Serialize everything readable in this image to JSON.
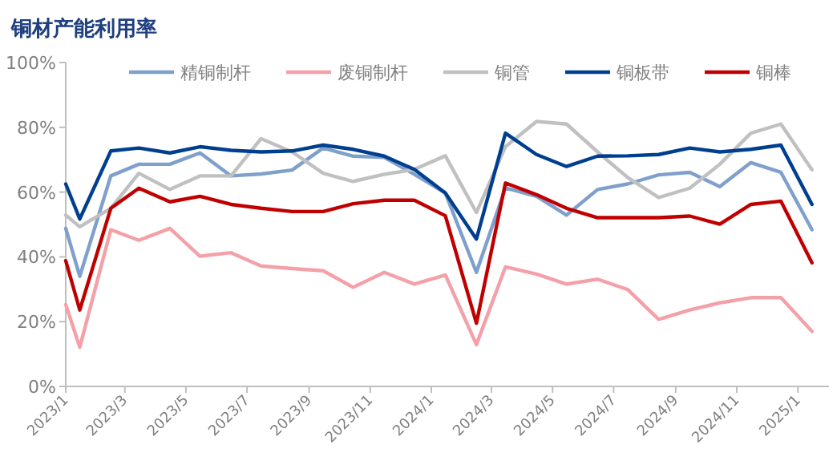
{
  "chart_data": {
    "type": "line",
    "title": "铜材产能利用率",
    "legend": "top",
    "x": [
      "2023-01-01",
      "2023-01-15",
      "2023-02-15",
      "2023-03-15",
      "2023-04-15",
      "2023-05-15",
      "2023-06-15",
      "2023-07-15",
      "2023-08-15",
      "2023-09-15",
      "2023-10-15",
      "2023-11-15",
      "2023-12-15",
      "2024-01-15",
      "2024-02-15",
      "2024-03-15",
      "2024-04-15",
      "2024-05-15",
      "2024-06-15",
      "2024-07-15",
      "2024-08-15",
      "2024-09-15",
      "2024-10-15",
      "2024-11-15",
      "2024-12-15",
      "2025-01-15"
    ],
    "series": [
      {
        "name": "精铜制杆",
        "color": "#7f9fcc",
        "values": [
          48.8,
          34.0,
          65.0,
          68.6,
          68.6,
          72.1,
          65.0,
          65.6,
          66.8,
          73.6,
          71.1,
          70.7,
          65.5,
          59.7,
          35.2,
          61.3,
          58.7,
          52.9,
          60.8,
          62.5,
          65.3,
          66.1,
          61.7,
          69.1,
          66.1,
          48.4
        ]
      },
      {
        "name": "废铜制杆",
        "color": "#f4a0a8",
        "values": [
          25.3,
          12.1,
          48.4,
          45.1,
          48.8,
          40.2,
          41.3,
          37.2,
          36.4,
          35.7,
          30.6,
          35.2,
          31.6,
          34.4,
          12.9,
          36.9,
          34.7,
          31.6,
          33.1,
          29.9,
          20.7,
          23.6,
          25.8,
          27.4,
          27.4,
          17.0
        ]
      },
      {
        "name": "铜管",
        "color": "#c0c0c0",
        "values": [
          52.9,
          49.3,
          55.0,
          65.8,
          60.8,
          65.0,
          65.0,
          76.5,
          72.4,
          65.8,
          63.3,
          65.5,
          67.0,
          71.2,
          53.7,
          74.0,
          81.8,
          81.0,
          72.4,
          64.5,
          58.3,
          61.2,
          68.6,
          78.2,
          81.0,
          66.9
        ]
      },
      {
        "name": "铜板带",
        "color": "#003f8f",
        "values": [
          62.5,
          51.7,
          72.7,
          73.6,
          72.1,
          74.0,
          72.9,
          72.4,
          72.7,
          74.5,
          73.2,
          71.1,
          67.0,
          59.7,
          45.5,
          78.2,
          71.6,
          67.9,
          71.1,
          71.2,
          71.6,
          73.6,
          72.4,
          73.2,
          74.5,
          56.2
        ]
      },
      {
        "name": "铜棒",
        "color": "#c00000",
        "values": [
          38.8,
          23.6,
          55.0,
          61.2,
          57.0,
          58.7,
          56.2,
          55.0,
          54.0,
          54.0,
          56.4,
          57.5,
          57.5,
          52.7,
          19.5,
          62.8,
          59.2,
          55.0,
          52.1,
          52.1,
          52.1,
          52.6,
          50.1,
          56.2,
          57.2,
          38.2
        ]
      }
    ],
    "xlim": [
      "2023-01-01",
      "2025-02-01"
    ],
    "xticks": [
      {
        "value": "2023-01-01",
        "label": "2023/1"
      },
      {
        "value": "2023-03-01",
        "label": "2023/3"
      },
      {
        "value": "2023-05-01",
        "label": "2023/5"
      },
      {
        "value": "2023-07-01",
        "label": "2023/7"
      },
      {
        "value": "2023-09-01",
        "label": "2023/9"
      },
      {
        "value": "2023-11-01",
        "label": "2023/11"
      },
      {
        "value": "2024-01-01",
        "label": "2024/1"
      },
      {
        "value": "2024-03-01",
        "label": "2024/3"
      },
      {
        "value": "2024-05-01",
        "label": "2024/5"
      },
      {
        "value": "2024-07-01",
        "label": "2024/7"
      },
      {
        "value": "2024-09-01",
        "label": "2024/9"
      },
      {
        "value": "2024-11-01",
        "label": "2024/11"
      },
      {
        "value": "2025-01-01",
        "label": "2025/1"
      }
    ],
    "ylim": [
      0,
      100
    ],
    "yticks": [
      {
        "value": 0,
        "label": "0%"
      },
      {
        "value": 20,
        "label": "20%"
      },
      {
        "value": 40,
        "label": "40%"
      },
      {
        "value": 60,
        "label": "60%"
      },
      {
        "value": 80,
        "label": "80%"
      },
      {
        "value": 100,
        "label": "100%"
      }
    ]
  }
}
